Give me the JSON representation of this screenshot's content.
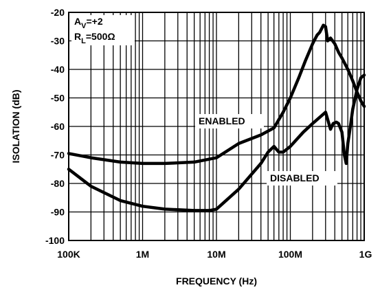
{
  "chart_data": {
    "type": "line",
    "title": "",
    "xlabel": "FREQUENCY (Hz)",
    "ylabel": "ISOLATION (dB)",
    "xscale": "log",
    "xlim": [
      100000,
      1000000000
    ],
    "ylim": [
      -100,
      -20
    ],
    "grid": true,
    "x_ticks": [
      {
        "value": 100000,
        "label": "100K"
      },
      {
        "value": 1000000,
        "label": "1M"
      },
      {
        "value": 10000000,
        "label": "10M"
      },
      {
        "value": 100000000,
        "label": "100M"
      },
      {
        "value": 1000000000,
        "label": "1G"
      }
    ],
    "y_ticks": [
      {
        "value": -20,
        "label": "-20"
      },
      {
        "value": -30,
        "label": "-30"
      },
      {
        "value": -40,
        "label": "-40"
      },
      {
        "value": -50,
        "label": "-50"
      },
      {
        "value": -60,
        "label": "-60"
      },
      {
        "value": -70,
        "label": "-70"
      },
      {
        "value": -80,
        "label": "-80"
      },
      {
        "value": -90,
        "label": "-90"
      },
      {
        "value": -100,
        "label": "-100"
      }
    ],
    "annotation": {
      "line1": "AV=+2",
      "line2": "RL=500Ω"
    },
    "series": [
      {
        "name": "ENABLED",
        "x": [
          100000,
          200000,
          500000,
          1000000,
          2000000,
          5000000,
          10000000,
          20000000,
          40000000,
          60000000,
          80000000,
          100000000,
          130000000,
          160000000,
          200000000,
          230000000,
          250000000,
          280000000,
          300000000,
          320000000,
          350000000,
          400000000,
          450000000,
          500000000,
          600000000,
          700000000,
          800000000,
          900000000,
          1000000000
        ],
        "values": [
          -69.5,
          -71,
          -72.5,
          -73,
          -73,
          -72.5,
          -71,
          -66,
          -63,
          -60.5,
          -55,
          -50,
          -43,
          -37,
          -31,
          -28,
          -27,
          -24.5,
          -25,
          -30,
          -29,
          -31,
          -34,
          -36,
          -40,
          -44,
          -48,
          -51,
          -53
        ]
      },
      {
        "name": "DISABLED",
        "x": [
          100000,
          200000,
          500000,
          1000000,
          2000000,
          5000000,
          8000000,
          10000000,
          20000000,
          40000000,
          50000000,
          60000000,
          70000000,
          80000000,
          100000000,
          150000000,
          200000000,
          300000000,
          350000000,
          380000000,
          420000000,
          450000000,
          500000000,
          540000000,
          570000000,
          600000000,
          650000000,
          700000000,
          800000000,
          900000000,
          1000000000
        ],
        "values": [
          -75,
          -81,
          -86,
          -88,
          -89,
          -89.5,
          -89.5,
          -89,
          -82,
          -73,
          -69,
          -67,
          -69,
          -69,
          -67,
          -62,
          -59,
          -55,
          -61,
          -59,
          -58.5,
          -59,
          -62,
          -70,
          -73,
          -66,
          -60,
          -54,
          -47,
          -43,
          -42
        ]
      }
    ]
  }
}
